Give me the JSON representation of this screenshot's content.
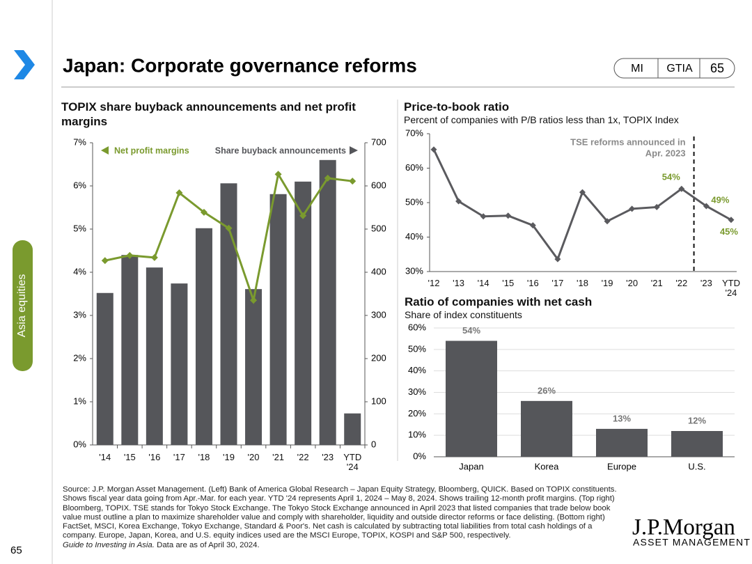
{
  "header": {
    "title": "Japan: Corporate governance reforms",
    "badges": [
      "MI",
      "GTIA",
      "65"
    ]
  },
  "sidebar": {
    "section": "Asia equities"
  },
  "page_number": "65",
  "logo": {
    "name": "J.P.Morgan",
    "subtitle": "ASSET MANAGEMENT"
  },
  "footer": {
    "source": "Source: J.P. Morgan Asset Management. (Left) Bank of America Global Research – Japan Equity Strategy, Bloomberg, QUICK. Based on TOPIX constituents. Shows fiscal year data going from Apr.-Mar. for each year. YTD '24 represents April 1, 2024 – May 8, 2024. Shows trailing 12-month profit margins. (Top right) Bloomberg, TOPIX. TSE stands for Tokyo Stock Exchange. The Tokyo Stock Exchange announced in April 2023 that listed companies that trade below book value must outline a plan to maximize shareholder value and comply with shareholder, liquidity and outside director reforms or face delisting. (Bottom right) FactSet, MSCI, Korea Exchange, Tokyo Exchange, Standard & Poor's. Net cash is calculated by subtracting total liabilities from total cash holdings of a company. Europe, Japan, Korea, and U.S. equity indices used are the MSCI Europe, TOPIX, KOSPI and S&P 500, respectively.",
    "guide": "Guide to Investing in Asia.",
    "date": "Data are as of April 30, 2024."
  },
  "chart_data": [
    {
      "type": "combo",
      "title": "TOPIX share buyback announcements and net profit margins",
      "categories": [
        "'14",
        "'15",
        "'16",
        "'17",
        "'18",
        "'19",
        "'20",
        "'21",
        "'22",
        "'23",
        "YTD '24"
      ],
      "series": [
        {
          "name": "Net profit margins",
          "type": "line",
          "color": "#7a9a2e",
          "values": [
            4.27,
            4.39,
            4.34,
            5.84,
            5.39,
            5.02,
            3.35,
            6.27,
            5.31,
            6.18,
            6.11
          ]
        },
        {
          "name": "Share buyback announcements",
          "type": "bar",
          "axis": "y2",
          "color": "#55565a",
          "values": [
            352,
            440,
            411,
            374,
            502,
            606,
            361,
            581,
            610,
            660,
            73
          ]
        }
      ],
      "ylim": [
        0,
        7
      ],
      "yticks": [
        {
          "value": 0,
          "label": "0%"
        },
        {
          "value": 1,
          "label": "1%"
        },
        {
          "value": 2,
          "label": "2%"
        },
        {
          "value": 3,
          "label": "3%"
        },
        {
          "value": 4,
          "label": "4%"
        },
        {
          "value": 5,
          "label": "5%"
        },
        {
          "value": 6,
          "label": "6%"
        },
        {
          "value": 7,
          "label": "7%"
        }
      ],
      "y2lim": [
        0,
        700
      ],
      "y2ticks": [
        0,
        100,
        200,
        300,
        400,
        500,
        600,
        700
      ]
    },
    {
      "type": "line",
      "title": "Price-to-book ratio",
      "subtitle": "Percent of companies with P/B ratios less than 1x, TOPIX Index",
      "categories": [
        "'12",
        "'13",
        "'14",
        "'15",
        "'16",
        "'17",
        "'18",
        "'19",
        "'20",
        "'21",
        "'22",
        "'23",
        "YTD '24"
      ],
      "values": [
        65.4,
        50.4,
        46.0,
        46.2,
        43.4,
        33.6,
        53.0,
        44.6,
        48.2,
        48.7,
        54,
        49,
        45
      ],
      "value_labels": [
        null,
        null,
        null,
        null,
        null,
        null,
        null,
        null,
        null,
        null,
        "54%",
        "49%",
        "45%"
      ],
      "color": "#5a5a5e",
      "label_color": "#7a9a2e",
      "annotation": [
        "TSE reforms announced in",
        "Apr. 2023"
      ],
      "ylim": [
        30,
        70
      ],
      "yticks": [
        {
          "value": 30,
          "label": "30%"
        },
        {
          "value": 40,
          "label": "40%"
        },
        {
          "value": 50,
          "label": "50%"
        },
        {
          "value": 60,
          "label": "60%"
        },
        {
          "value": 70,
          "label": "70%"
        }
      ]
    },
    {
      "type": "bar",
      "title": "Ratio of companies with net cash",
      "subtitle": "Share of index constituents",
      "categories": [
        "Japan",
        "Korea",
        "Europe",
        "U.S."
      ],
      "values": [
        54,
        26,
        13,
        12
      ],
      "value_labels": [
        "54%",
        "26%",
        "13%",
        "12%"
      ],
      "color": "#55565a",
      "ylim": [
        0,
        60
      ],
      "yticks": [
        {
          "value": 0,
          "label": "0%"
        },
        {
          "value": 10,
          "label": "10%"
        },
        {
          "value": 20,
          "label": "20%"
        },
        {
          "value": 30,
          "label": "30%"
        },
        {
          "value": 40,
          "label": "40%"
        },
        {
          "value": 50,
          "label": "50%"
        },
        {
          "value": 60,
          "label": "60%"
        }
      ],
      "grid": true
    }
  ]
}
